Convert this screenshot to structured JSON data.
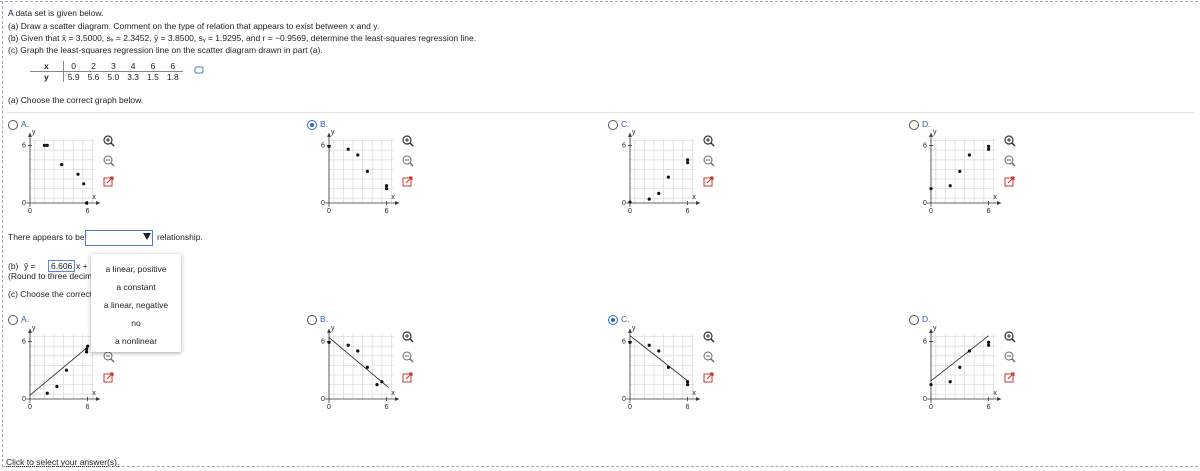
{
  "intro": "A data set is given below.",
  "part_a": "(a) Draw a scatter diagram. Comment on the type of relation that appears to exist between x and y.",
  "part_b": "(b) Given that x̄ = 3.5000, sₓ = 2.3452, ȳ = 3.8500, sᵧ = 1.9295, and r = −0.9569, determine the least-squares regression line.",
  "part_c": "(c) Graph the least-squares regression line on the scatter diagram drawn in part (a).",
  "table": {
    "rows": [
      [
        "x",
        "0",
        "2",
        "3",
        "4",
        "6",
        "6"
      ],
      [
        "y",
        "5.9",
        "5.6",
        "5.0",
        "3.3",
        "1.5",
        "1.8"
      ]
    ]
  },
  "question_a": "(a) Choose the correct graph below.",
  "graph_axis": {
    "x_label": "x",
    "y_label": "y",
    "origin": "0",
    "x_tick": "6",
    "y_tick": "6"
  },
  "graphs_a": [
    {
      "label": "A.",
      "selected": false,
      "points": [
        [
          1.5,
          6
        ],
        [
          1.8,
          6
        ],
        [
          3.3,
          4
        ],
        [
          5.0,
          3
        ],
        [
          5.6,
          2
        ],
        [
          5.9,
          0
        ]
      ]
    },
    {
      "label": "B.",
      "selected": true,
      "points": [
        [
          0,
          5.9
        ],
        [
          2,
          5.6
        ],
        [
          3,
          5.0
        ],
        [
          4,
          3.3
        ],
        [
          6,
          1.5
        ],
        [
          6,
          1.8
        ]
      ]
    },
    {
      "label": "C.",
      "selected": false,
      "points": [
        [
          0,
          0.1
        ],
        [
          2,
          0.4
        ],
        [
          3,
          1.0
        ],
        [
          4,
          2.7
        ],
        [
          6,
          4.5
        ],
        [
          6,
          4.2
        ]
      ]
    },
    {
      "label": "D.",
      "selected": false,
      "points": [
        [
          0,
          1.5
        ],
        [
          2,
          1.8
        ],
        [
          3,
          3.3
        ],
        [
          4,
          5.0
        ],
        [
          6,
          5.6
        ],
        [
          6,
          5.9
        ]
      ]
    }
  ],
  "relationship": {
    "prefix": "There appears to be",
    "suffix": "relationship.",
    "options": [
      "a linear, positive",
      "a constant",
      "a linear, negative",
      "no",
      "a nonlinear"
    ]
  },
  "answer_b": {
    "label": "(b)",
    "lhs": "ŷ =",
    "coefficient": "6.606",
    "middle": "x +",
    "open": "(",
    "note": "(Round to three decimal places as needed.)"
  },
  "question_c": "(c) Choose the correct graph below.",
  "graphs_c": [
    {
      "label": "A.",
      "selected": false,
      "points": [
        [
          1.8,
          0.6
        ],
        [
          2.8,
          1.3
        ],
        [
          3.8,
          3.0
        ],
        [
          5.9,
          4.9
        ],
        [
          5.9,
          5.2
        ],
        [
          6,
          5.5
        ]
      ],
      "line": [
        [
          0,
          0.4
        ],
        [
          6,
          5.4
        ]
      ]
    },
    {
      "label": "B.",
      "selected": false,
      "points": [
        [
          0,
          5.9
        ],
        [
          2,
          5.6
        ],
        [
          3,
          5.0
        ],
        [
          4,
          3.3
        ],
        [
          5,
          1.5
        ],
        [
          5.5,
          1.8
        ]
      ],
      "line": [
        [
          0,
          6.4
        ],
        [
          6.2,
          1.2
        ]
      ]
    },
    {
      "label": "C.",
      "selected": true,
      "points": [
        [
          0,
          5.9
        ],
        [
          2,
          5.6
        ],
        [
          3,
          5.0
        ],
        [
          4,
          3.3
        ],
        [
          6,
          1.5
        ],
        [
          6,
          1.8
        ]
      ],
      "line": [
        [
          0,
          6.6
        ],
        [
          6,
          1.9
        ]
      ]
    },
    {
      "label": "D.",
      "selected": false,
      "points": [
        [
          0,
          1.5
        ],
        [
          2,
          1.8
        ],
        [
          3,
          3.3
        ],
        [
          4,
          5.0
        ],
        [
          6,
          5.6
        ],
        [
          6,
          5.9
        ]
      ],
      "line": [
        [
          0,
          1.9
        ],
        [
          6,
          6.6
        ]
      ]
    }
  ],
  "footer": "Click to select your answer(s)."
}
